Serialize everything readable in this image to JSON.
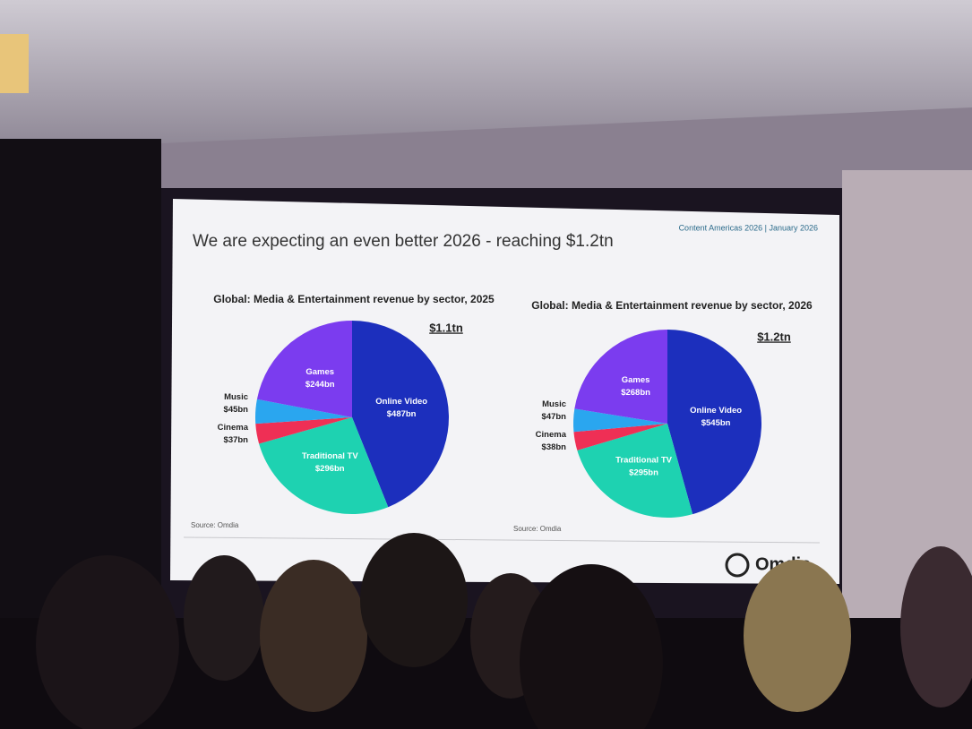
{
  "header": {
    "title": "We are expecting an even better 2026 - reaching $1.2tn",
    "tag": "Content Americas 2026 | January 2026"
  },
  "chart_data": [
    {
      "type": "pie",
      "title": "Global: Media & Entertainment revenue by sector, 2025",
      "total_label": "$1.1tn",
      "categories": [
        "Online Video",
        "Traditional TV",
        "Cinema",
        "Music",
        "Games"
      ],
      "values": [
        487,
        296,
        37,
        45,
        244
      ],
      "value_labels": [
        "$487bn",
        "$296bn",
        "$37bn",
        "$45bn",
        "$244bn"
      ],
      "colors": [
        "#1c2fbd",
        "#1ed2b1",
        "#ef2f55",
        "#2aa6ef",
        "#7b3cef"
      ],
      "source": "Source: Omdia"
    },
    {
      "type": "pie",
      "title": "Global: Media & Entertainment revenue by sector, 2026",
      "total_label": "$1.2tn",
      "categories": [
        "Online Video",
        "Traditional TV",
        "Cinema",
        "Music",
        "Games"
      ],
      "values": [
        545,
        295,
        38,
        47,
        268
      ],
      "value_labels": [
        "$545bn",
        "$295bn",
        "$38bn",
        "$47bn",
        "$268bn"
      ],
      "colors": [
        "#1c2fbd",
        "#1ed2b1",
        "#ef2f55",
        "#2aa6ef",
        "#7b3cef"
      ],
      "source": "Source: Omdia"
    }
  ],
  "footer": {
    "logo": "Omdia"
  }
}
